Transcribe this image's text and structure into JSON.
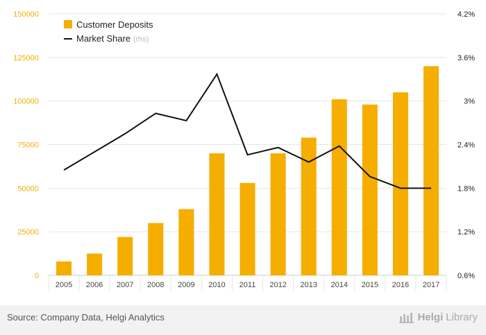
{
  "chart_data": {
    "type": "bar",
    "categories": [
      "2005",
      "2006",
      "2007",
      "2008",
      "2009",
      "2010",
      "2011",
      "2012",
      "2013",
      "2014",
      "2015",
      "2016",
      "2017"
    ],
    "series": [
      {
        "name": "Customer Deposits",
        "type": "bar",
        "axis": "left",
        "values": [
          8000,
          12500,
          22000,
          30000,
          38000,
          70000,
          53000,
          70000,
          79000,
          101000,
          98000,
          105000,
          120000
        ]
      },
      {
        "name": "Market Share",
        "name_suffix": "(rhs)",
        "type": "line",
        "axis": "right",
        "values": [
          2.05,
          2.3,
          2.55,
          2.83,
          2.73,
          3.37,
          2.26,
          2.36,
          2.16,
          2.38,
          1.96,
          1.8,
          1.8
        ]
      }
    ],
    "ylim_left": [
      0,
      150000
    ],
    "yticks_left": [
      "0",
      "25000",
      "50000",
      "75000",
      "100000",
      "125000",
      "150000"
    ],
    "ylim_right": [
      0.6,
      4.2
    ],
    "yticks_right": [
      "0.6%",
      "1.2%",
      "1.8%",
      "2.4%",
      "3%",
      "3.6%",
      "4.2%"
    ],
    "grid": true,
    "legend_position": "top-left",
    "colors": {
      "bar": "#f5ae00",
      "line": "#111111",
      "left_axis_text": "#f5ae00",
      "right_axis_text": "#222222"
    }
  },
  "footer": {
    "source": "Source: Company Data, Helgi Analytics",
    "logo_bold": "Helgi",
    "logo_light": "Library"
  }
}
